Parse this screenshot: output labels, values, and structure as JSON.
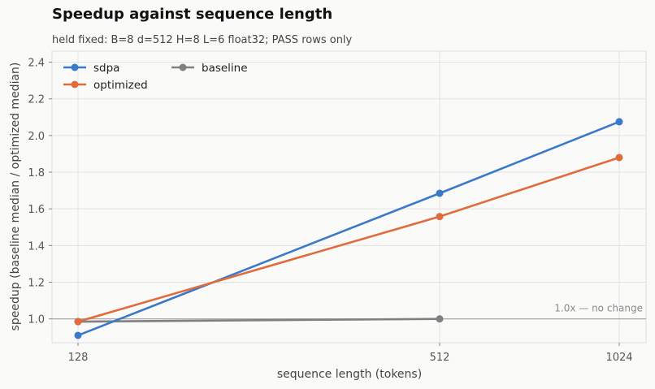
{
  "chart_data": {
    "type": "line",
    "title": "Speedup against sequence length",
    "subtitle": "held fixed: B=8 d=512 H=8 L=6 float32; PASS rows only",
    "xlabel": "sequence length (tokens)",
    "ylabel": "speedup (baseline median / optimized median)",
    "x": [
      128,
      512,
      1024
    ],
    "x_ticks": [
      "128",
      "512",
      "1024"
    ],
    "y_ticks": [
      "1.0",
      "1.2",
      "1.4",
      "1.6",
      "1.8",
      "2.0",
      "2.2",
      "2.4"
    ],
    "ylim": [
      0.87,
      2.46
    ],
    "grid": true,
    "legend_placement": "top-left",
    "reference_line": {
      "y": 1.0,
      "label": "1.0x — no change",
      "color": "#a8a8a8"
    },
    "series": [
      {
        "name": "sdpa",
        "color": "#3a78c9",
        "x": [
          128,
          512,
          1024
        ],
        "values": [
          0.91,
          1.685,
          2.075
        ]
      },
      {
        "name": "optimized",
        "color": "#e06c3e",
        "x": [
          128,
          512,
          1024
        ],
        "values": [
          0.985,
          1.558,
          1.88
        ]
      },
      {
        "name": "baseline",
        "color": "#808080",
        "x": [
          128,
          512
        ],
        "values": [
          0.985,
          1.0
        ]
      }
    ]
  }
}
